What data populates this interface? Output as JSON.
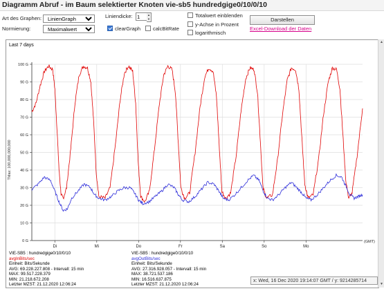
{
  "window": {
    "title": "Diagramm Abruf - im Baum selektierter Knoten vie-sb5 hundredgige0/10/0/10"
  },
  "controls": {
    "graph_type_label": "Art des Graphen:",
    "graph_type_value": "LinienGraph",
    "normalize_label": "Normierung:",
    "normalize_value": "Maximalwert",
    "line_width_label": "Liniendicke:",
    "line_width_value": "1",
    "clear_graph_label": "clearGraph",
    "clear_graph_checked": true,
    "calc_bitrate_label": "calcBitRate",
    "calc_bitrate_checked": false,
    "total_show_label": "Totalwert einblenden",
    "y_percent_label": "y-Achse in Prozent",
    "log_label": "logarithmisch",
    "show_button": "Darstellen",
    "excel_link": "Excel-Download der Daten"
  },
  "chart_data": {
    "type": "line",
    "title": "Last 7 days",
    "ylabel": "TMax: 100,000,000,000",
    "xlabel": "(GMT)",
    "ylim": [
      0,
      100
    ],
    "yticks": [
      "0 G",
      "10 G",
      "20 G",
      "30 G",
      "40 G",
      "50 G",
      "60 G",
      "70 G",
      "80 G",
      "90 G",
      "100 G"
    ],
    "xticks": [
      "Di",
      "Mi",
      "Do",
      "Fr",
      "Sa",
      "So",
      "Mo"
    ],
    "x_range_days": [
      -0.55,
      7.35
    ],
    "series": [
      {
        "name": "avgInBits/sec",
        "color": "#e00000",
        "points": [
          [
            -0.55,
            73
          ],
          [
            -0.45,
            78
          ],
          [
            -0.35,
            88
          ],
          [
            -0.25,
            96
          ],
          [
            -0.15,
            99
          ],
          [
            -0.05,
            97
          ],
          [
            0.0,
            86
          ],
          [
            0.05,
            64
          ],
          [
            0.1,
            40
          ],
          [
            0.15,
            26
          ],
          [
            0.2,
            24
          ],
          [
            0.28,
            30
          ],
          [
            0.38,
            52
          ],
          [
            0.48,
            78
          ],
          [
            0.58,
            94
          ],
          [
            0.68,
            99
          ],
          [
            0.78,
            98
          ],
          [
            0.86,
            90
          ],
          [
            0.93,
            66
          ],
          [
            0.99,
            38
          ],
          [
            1.05,
            25
          ],
          [
            1.2,
            24
          ],
          [
            1.32,
            30
          ],
          [
            1.45,
            55
          ],
          [
            1.56,
            80
          ],
          [
            1.66,
            95
          ],
          [
            1.76,
            99
          ],
          [
            1.86,
            96
          ],
          [
            1.93,
            78
          ],
          [
            1.99,
            45
          ],
          [
            2.05,
            25
          ],
          [
            2.15,
            22
          ],
          [
            2.26,
            28
          ],
          [
            2.38,
            52
          ],
          [
            2.5,
            78
          ],
          [
            2.6,
            94
          ],
          [
            2.7,
            99
          ],
          [
            2.8,
            97
          ],
          [
            2.88,
            84
          ],
          [
            2.95,
            55
          ],
          [
            3.01,
            30
          ],
          [
            3.1,
            24
          ],
          [
            3.22,
            27
          ],
          [
            3.35,
            50
          ],
          [
            3.47,
            76
          ],
          [
            3.58,
            93
          ],
          [
            3.68,
            98
          ],
          [
            3.78,
            96
          ],
          [
            3.86,
            82
          ],
          [
            3.93,
            52
          ],
          [
            3.99,
            28
          ],
          [
            4.08,
            24
          ],
          [
            4.2,
            27
          ],
          [
            4.33,
            48
          ],
          [
            4.45,
            74
          ],
          [
            4.56,
            92
          ],
          [
            4.66,
            98
          ],
          [
            4.76,
            97
          ],
          [
            4.84,
            84
          ],
          [
            4.91,
            56
          ],
          [
            4.97,
            30
          ],
          [
            5.06,
            24
          ],
          [
            5.2,
            26
          ],
          [
            5.32,
            46
          ],
          [
            5.44,
            72
          ],
          [
            5.55,
            91
          ],
          [
            5.65,
            98
          ],
          [
            5.75,
            97
          ],
          [
            5.83,
            86
          ],
          [
            5.9,
            58
          ],
          [
            5.97,
            32
          ],
          [
            6.05,
            24
          ],
          [
            6.17,
            26
          ],
          [
            6.3,
            46
          ],
          [
            6.42,
            72
          ],
          [
            6.53,
            90
          ],
          [
            6.63,
            98
          ],
          [
            6.73,
            97
          ],
          [
            6.81,
            86
          ],
          [
            6.88,
            60
          ],
          [
            6.95,
            34
          ],
          [
            7.02,
            24
          ],
          [
            7.1,
            27
          ],
          [
            7.22,
            48
          ],
          [
            7.35,
            75
          ]
        ]
      },
      {
        "name": "avgOutBits/sec",
        "color": "#2b2bd9",
        "points": [
          [
            -0.55,
            29
          ],
          [
            -0.4,
            32
          ],
          [
            -0.25,
            36
          ],
          [
            -0.1,
            34
          ],
          [
            0.0,
            28
          ],
          [
            0.1,
            22
          ],
          [
            0.2,
            17
          ],
          [
            0.3,
            18
          ],
          [
            0.4,
            24
          ],
          [
            0.55,
            28
          ],
          [
            0.7,
            32
          ],
          [
            0.85,
            30
          ],
          [
            0.95,
            26
          ],
          [
            1.05,
            24
          ],
          [
            1.2,
            23
          ],
          [
            1.35,
            25
          ],
          [
            1.5,
            28
          ],
          [
            1.65,
            30
          ],
          [
            1.8,
            30
          ],
          [
            1.9,
            27
          ],
          [
            2.0,
            23
          ],
          [
            2.1,
            21
          ],
          [
            2.25,
            22
          ],
          [
            2.4,
            25
          ],
          [
            2.55,
            28
          ],
          [
            2.7,
            32
          ],
          [
            2.85,
            30
          ],
          [
            2.95,
            26
          ],
          [
            3.05,
            23
          ],
          [
            3.2,
            22
          ],
          [
            3.35,
            25
          ],
          [
            3.5,
            29
          ],
          [
            3.65,
            33
          ],
          [
            3.8,
            32
          ],
          [
            3.92,
            28
          ],
          [
            4.02,
            24
          ],
          [
            4.15,
            23
          ],
          [
            4.3,
            26
          ],
          [
            4.45,
            30
          ],
          [
            4.6,
            34
          ],
          [
            4.75,
            37
          ],
          [
            4.88,
            34
          ],
          [
            4.98,
            28
          ],
          [
            5.08,
            24
          ],
          [
            5.2,
            23
          ],
          [
            5.35,
            26
          ],
          [
            5.5,
            30
          ],
          [
            5.65,
            33
          ],
          [
            5.78,
            30
          ],
          [
            5.9,
            27
          ],
          [
            6.0,
            24
          ],
          [
            6.12,
            23
          ],
          [
            6.27,
            26
          ],
          [
            6.42,
            30
          ],
          [
            6.57,
            34
          ],
          [
            6.72,
            37
          ],
          [
            6.85,
            36
          ],
          [
            6.95,
            31
          ],
          [
            7.05,
            26
          ],
          [
            7.15,
            24
          ],
          [
            7.25,
            25
          ],
          [
            7.35,
            26
          ]
        ]
      }
    ]
  },
  "legend_left": {
    "node": "VIE-SB5 : hundredgige0/10/0/10",
    "series": "avgInBits/sec",
    "unit": "Einheit: Bits/Sekunde",
    "avg": "AVG: 69.228.227.808  -  Intervall: 15 min",
    "max": "MAX: 99.517.228.379",
    "min": "MIN: 21.218.672.208",
    "last": "Letzter MZST: 21.12.2020 12:06:24"
  },
  "legend_right": {
    "node": "VIE-SB5 : hundredgige0/10/0/10",
    "series": "avgOutBits/sec",
    "unit": "Einheit: Bits/Sekunde",
    "avg": "AVG: 27.316.928.057  -  Intervall: 15 min",
    "max": "MAX: 38.721.537.186",
    "min": "MIN: 16.516.637.875",
    "last": "Letzter MZST: 21.12.2020 12:06:24"
  },
  "status": {
    "text": "x: Wed, 16 Dec 2020 19:14:07 GMT / y: 9214285714"
  }
}
